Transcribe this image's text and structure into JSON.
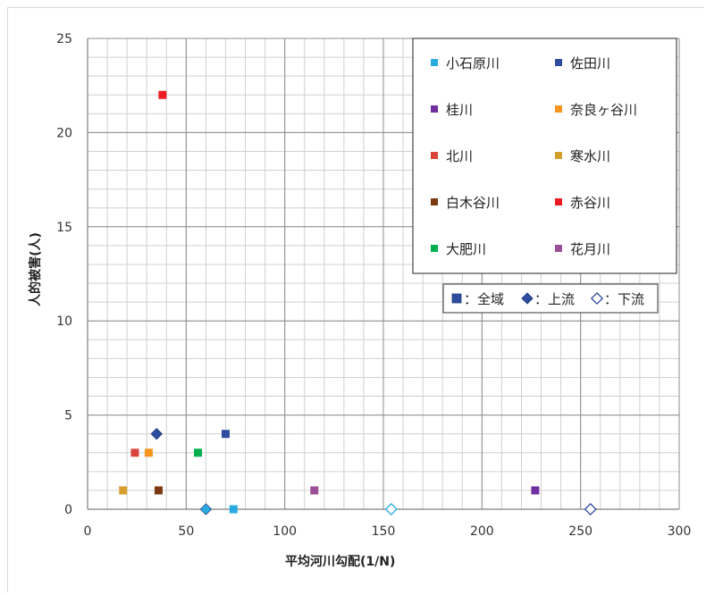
{
  "chart_data": {
    "type": "scatter",
    "xlabel": "平均河川勾配(1/N)",
    "ylabel": "人的被害(人)",
    "xlim": [
      0,
      300
    ],
    "ylim": [
      0,
      25
    ],
    "xticks": [
      0,
      50,
      100,
      150,
      200,
      250,
      300
    ],
    "yticks": [
      0,
      5,
      10,
      15,
      20,
      25
    ],
    "grid": true,
    "legend_position": "top-right",
    "series": [
      {
        "name": "小石原川",
        "color": "#29abe2",
        "points": [
          {
            "x": 74,
            "y": 0,
            "marker": "square"
          },
          {
            "x": 60,
            "y": 0,
            "marker": "diamond"
          },
          {
            "x": 154,
            "y": 0,
            "marker": "diamond-open"
          }
        ]
      },
      {
        "name": "佐田川",
        "color": "#2e4d9f",
        "points": [
          {
            "x": 70,
            "y": 4,
            "marker": "square"
          },
          {
            "x": 35,
            "y": 4,
            "marker": "diamond"
          },
          {
            "x": 255,
            "y": 0,
            "marker": "diamond-open"
          }
        ]
      },
      {
        "name": "桂川",
        "color": "#7030a0",
        "points": [
          {
            "x": 227,
            "y": 1,
            "marker": "square"
          }
        ]
      },
      {
        "name": "奈良ヶ谷川",
        "color": "#f7941d",
        "points": [
          {
            "x": 31,
            "y": 3,
            "marker": "square"
          }
        ]
      },
      {
        "name": "北川",
        "color": "#d9453c",
        "points": [
          {
            "x": 24,
            "y": 3,
            "marker": "square"
          }
        ]
      },
      {
        "name": "寒水川",
        "color": "#d4a02b",
        "points": [
          {
            "x": 18,
            "y": 1,
            "marker": "square"
          }
        ]
      },
      {
        "name": "白木谷川",
        "color": "#7b3a12",
        "points": [
          {
            "x": 36,
            "y": 1,
            "marker": "square"
          }
        ]
      },
      {
        "name": "赤谷川",
        "color": "#ed1c24",
        "points": [
          {
            "x": 38,
            "y": 22,
            "marker": "square"
          }
        ]
      },
      {
        "name": "大肥川",
        "color": "#00b050",
        "points": [
          {
            "x": 56,
            "y": 3,
            "marker": "square"
          }
        ]
      },
      {
        "name": "花月川",
        "color": "#9b4f96",
        "points": [
          {
            "x": 115,
            "y": 1,
            "marker": "square"
          }
        ]
      }
    ],
    "marker_legend": [
      {
        "marker": "square",
        "label": "：全域"
      },
      {
        "marker": "diamond",
        "label": "：上流"
      },
      {
        "marker": "diamond-open",
        "label": "：下流"
      }
    ],
    "marker_legend_color": "#2e4d9f"
  }
}
